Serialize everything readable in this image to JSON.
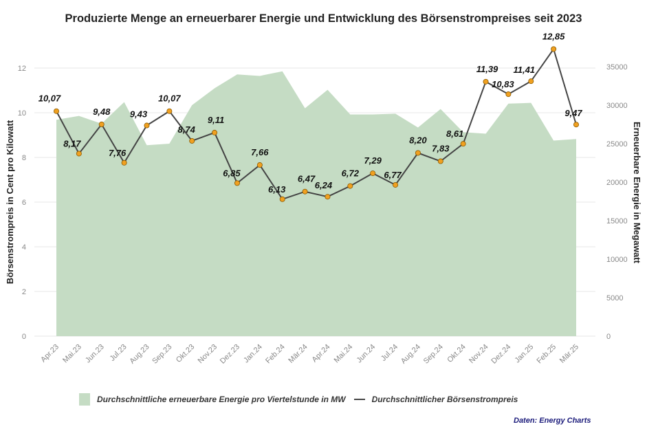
{
  "chart_data": {
    "type": "line",
    "title": "Produzierte Menge an erneuerbarer Energie und Entwicklung des Börsenstrompreises seit 2023",
    "categories": [
      "Apr.23",
      "Mai.23",
      "Jun.23",
      "Jul.23",
      "Aug.23",
      "Sep.23",
      "Okt.23",
      "Nov.23",
      "Dez.23",
      "Jan.24",
      "Feb.24",
      "Mär.24",
      "Apr.24",
      "Mai.24",
      "Jun.24",
      "Jul.24",
      "Aug.24",
      "Sep.24",
      "Okt.24",
      "Nov.24",
      "Dez.24",
      "Jan.25",
      "Feb.25",
      "Mär.25"
    ],
    "series": [
      {
        "name": "Durchschnittliche erneuerbare Energie pro Viertelstunde in MW",
        "type": "area",
        "axis": "right",
        "color": "#c5dcc4",
        "values": [
          28100,
          28600,
          27600,
          30400,
          24800,
          25000,
          30000,
          32200,
          34000,
          33800,
          34400,
          29600,
          32000,
          28800,
          28800,
          28900,
          27100,
          29500,
          26500,
          26300,
          30200,
          30300,
          25400,
          25600
        ]
      },
      {
        "name": "Durchschnittlicher Börsenstrompreis",
        "type": "line",
        "axis": "left",
        "color": "#444444",
        "marker_color": "#f0a020",
        "values": [
          10.07,
          8.17,
          9.48,
          7.76,
          9.43,
          10.07,
          8.74,
          9.11,
          6.85,
          7.66,
          6.13,
          6.47,
          6.24,
          6.72,
          7.29,
          6.77,
          8.2,
          7.83,
          8.61,
          11.39,
          10.83,
          11.41,
          12.85,
          9.47
        ],
        "labels": [
          "10,07",
          "8,17",
          "9,48",
          "7,76",
          "9,43",
          "10,07",
          "8,74",
          "9,11",
          "6,85",
          "7,66",
          "6,13",
          "6,47",
          "6,24",
          "6,72",
          "7,29",
          "6,77",
          "8,20",
          "7,83",
          "8,61",
          "11,39",
          "10,83",
          "11,41",
          "12,85",
          "9,47"
        ]
      }
    ],
    "ylabel": "Börsenstrompreis in Cent pro Kilowatt",
    "ylabel_right": "Erneuerbare Energie in Megawatt",
    "xlabel": "",
    "ylim": [
      0,
      12.1
    ],
    "ylim_right": [
      0,
      35200
    ],
    "yticks": [
      0,
      2,
      4,
      6,
      8,
      10,
      12
    ],
    "yticks_right": [
      0,
      5000,
      10000,
      15000,
      20000,
      25000,
      30000,
      35000
    ],
    "grid": true,
    "legend_position": "bottom",
    "source": "Daten: Energy Charts"
  }
}
